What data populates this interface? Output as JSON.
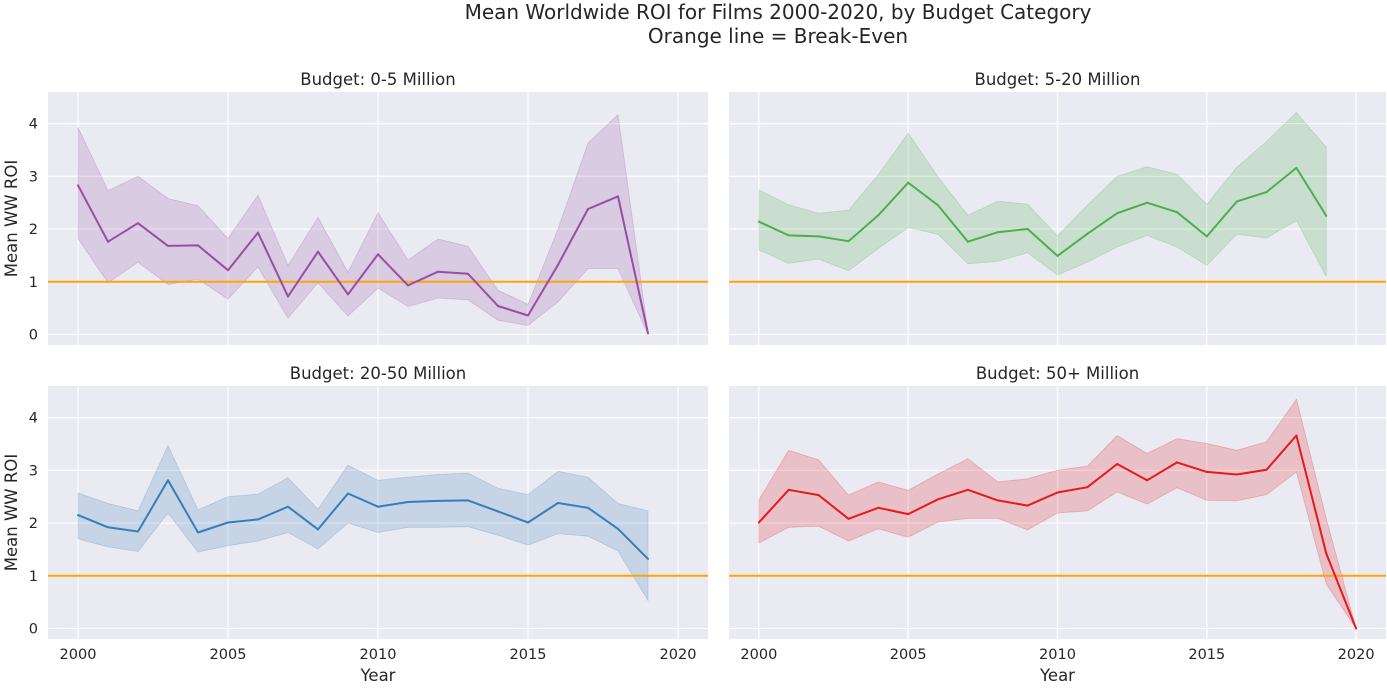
{
  "figure": {
    "title_line1": "Mean Worldwide ROI for Films 2000-2020, by Budget Category",
    "title_line2": "Orange line = Break-Even"
  },
  "colors": {
    "panel_bg": "#eaeaf2",
    "grid": "#ffffff",
    "breakeven": "#ffa500"
  },
  "chart_data": [
    {
      "type": "line",
      "title": "Budget: 0-5 Million",
      "xlabel": "",
      "ylabel": "Mean WW ROI",
      "xlim": [
        1999,
        2021
      ],
      "ylim": [
        -0.2,
        4.6
      ],
      "xticks": [
        2000,
        2005,
        2010,
        2015,
        2020
      ],
      "yticks": [
        0,
        1,
        2,
        3,
        4
      ],
      "grid": true,
      "color": "#984ea3",
      "reference_line": {
        "y": 1,
        "color": "#ffa500"
      },
      "x": [
        2000,
        2001,
        2002,
        2003,
        2004,
        2005,
        2006,
        2007,
        2008,
        2009,
        2010,
        2011,
        2012,
        2013,
        2014,
        2015,
        2016,
        2017,
        2018,
        2019
      ],
      "y": [
        2.83,
        1.76,
        2.11,
        1.68,
        1.69,
        1.22,
        1.93,
        0.72,
        1.57,
        0.76,
        1.52,
        0.93,
        1.19,
        1.15,
        0.54,
        0.36,
        1.32,
        2.38,
        2.62,
        0.02
      ],
      "ci_low": [
        1.82,
        0.98,
        1.37,
        0.95,
        1.05,
        0.67,
        1.28,
        0.31,
        0.98,
        0.35,
        0.88,
        0.53,
        0.69,
        0.66,
        0.27,
        0.17,
        0.62,
        1.25,
        1.25,
        0.0
      ],
      "ci_high": [
        3.93,
        2.73,
        3.0,
        2.58,
        2.44,
        1.82,
        2.64,
        1.31,
        2.22,
        1.18,
        2.31,
        1.41,
        1.81,
        1.67,
        0.84,
        0.57,
        2.0,
        3.63,
        4.17,
        0.04
      ]
    },
    {
      "type": "line",
      "title": "Budget: 5-20 Million",
      "xlabel": "",
      "ylabel": "",
      "xlim": [
        1999,
        2021
      ],
      "ylim": [
        -0.2,
        4.6
      ],
      "xticks": [
        2000,
        2005,
        2010,
        2015,
        2020
      ],
      "yticks": [
        0,
        1,
        2,
        3,
        4
      ],
      "grid": true,
      "color": "#4daf4a",
      "reference_line": {
        "y": 1,
        "color": "#ffa500"
      },
      "x": [
        2000,
        2001,
        2002,
        2003,
        2004,
        2005,
        2006,
        2007,
        2008,
        2009,
        2010,
        2011,
        2012,
        2013,
        2014,
        2015,
        2016,
        2017,
        2018,
        2019
      ],
      "y": [
        2.14,
        1.88,
        1.86,
        1.77,
        2.26,
        2.88,
        2.45,
        1.76,
        1.94,
        2.0,
        1.49,
        1.91,
        2.3,
        2.5,
        2.32,
        1.86,
        2.52,
        2.7,
        3.16,
        2.25
      ],
      "ci_low": [
        1.6,
        1.35,
        1.43,
        1.21,
        1.63,
        2.03,
        1.9,
        1.34,
        1.39,
        1.55,
        1.13,
        1.37,
        1.66,
        1.88,
        1.66,
        1.31,
        1.9,
        1.83,
        2.16,
        1.1
      ],
      "ci_high": [
        2.74,
        2.46,
        2.3,
        2.36,
        3.03,
        3.82,
        2.99,
        2.26,
        2.53,
        2.47,
        1.87,
        2.45,
        3.0,
        3.18,
        3.04,
        2.47,
        3.17,
        3.66,
        4.21,
        3.55
      ]
    },
    {
      "type": "line",
      "title": "Budget: 20-50 Million",
      "xlabel": "Year",
      "ylabel": "Mean WW ROI",
      "xlim": [
        1999,
        2021
      ],
      "ylim": [
        -0.2,
        4.6
      ],
      "xticks": [
        2000,
        2005,
        2010,
        2015,
        2020
      ],
      "yticks": [
        0,
        1,
        2,
        3,
        4
      ],
      "grid": true,
      "color": "#377eb8",
      "reference_line": {
        "y": 1,
        "color": "#ffa500"
      },
      "x": [
        2000,
        2001,
        2002,
        2003,
        2004,
        2005,
        2006,
        2007,
        2008,
        2009,
        2010,
        2011,
        2012,
        2013,
        2014,
        2015,
        2016,
        2017,
        2018,
        2019
      ],
      "y": [
        2.15,
        1.92,
        1.84,
        2.81,
        1.82,
        2.01,
        2.07,
        2.31,
        1.88,
        2.56,
        2.31,
        2.4,
        2.42,
        2.43,
        2.22,
        2.01,
        2.38,
        2.29,
        1.89,
        1.32
      ],
      "ci_low": [
        1.7,
        1.55,
        1.46,
        2.19,
        1.45,
        1.57,
        1.66,
        1.82,
        1.51,
        2.0,
        1.82,
        1.92,
        1.92,
        1.93,
        1.77,
        1.58,
        1.8,
        1.75,
        1.47,
        0.53
      ],
      "ci_high": [
        2.57,
        2.37,
        2.23,
        3.47,
        2.25,
        2.5,
        2.55,
        2.86,
        2.26,
        3.1,
        2.81,
        2.87,
        2.92,
        2.95,
        2.66,
        2.54,
        2.98,
        2.87,
        2.37,
        2.23
      ]
    },
    {
      "type": "line",
      "title": "Budget: 50+ Million",
      "xlabel": "Year",
      "ylabel": "",
      "xlim": [
        1999,
        2021
      ],
      "ylim": [
        -0.2,
        4.6
      ],
      "xticks": [
        2000,
        2005,
        2010,
        2015,
        2020
      ],
      "yticks": [
        0,
        1,
        2,
        3,
        4
      ],
      "grid": true,
      "color": "#e41a1c",
      "reference_line": {
        "y": 1,
        "color": "#ffa500"
      },
      "x": [
        2000,
        2001,
        2002,
        2003,
        2004,
        2005,
        2006,
        2007,
        2008,
        2009,
        2010,
        2011,
        2012,
        2013,
        2014,
        2015,
        2016,
        2017,
        2018,
        2019,
        2020
      ],
      "y": [
        2.01,
        2.63,
        2.53,
        2.08,
        2.29,
        2.17,
        2.45,
        2.63,
        2.43,
        2.33,
        2.58,
        2.68,
        3.12,
        2.81,
        3.15,
        2.97,
        2.92,
        3.01,
        3.66,
        1.42,
        0.0
      ],
      "ci_low": [
        1.62,
        1.92,
        1.94,
        1.66,
        1.89,
        1.73,
        2.02,
        2.09,
        2.09,
        1.87,
        2.19,
        2.23,
        2.59,
        2.36,
        2.67,
        2.43,
        2.42,
        2.54,
        2.97,
        0.84,
        0.0
      ],
      "ci_high": [
        2.44,
        3.38,
        3.2,
        2.53,
        2.78,
        2.62,
        2.93,
        3.22,
        2.78,
        2.84,
        3.0,
        3.08,
        3.66,
        3.32,
        3.6,
        3.51,
        3.38,
        3.54,
        4.35,
        2.08,
        0.0
      ]
    }
  ]
}
